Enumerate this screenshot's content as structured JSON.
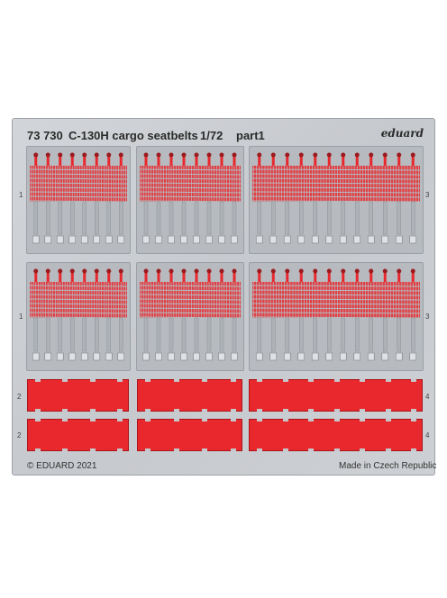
{
  "header": {
    "code": "73 730",
    "title": "C-130H cargo seatbelts",
    "scale": "1/72",
    "part": "part1",
    "brand": "eduard"
  },
  "footer": {
    "copyright": "© EDUARD 2021",
    "origin": "Made in Czech Republic"
  },
  "part_numbers": {
    "left_row1": "1",
    "left_row2": "1",
    "left_row3": "2",
    "left_row4": "2",
    "right_row1": "3",
    "right_row2": "3",
    "right_row3": "4",
    "right_row4": "4"
  },
  "colors": {
    "fret": "#cbced2",
    "photoetch_red": "#e8282d",
    "buckle_grey": "#aeb2b7"
  }
}
